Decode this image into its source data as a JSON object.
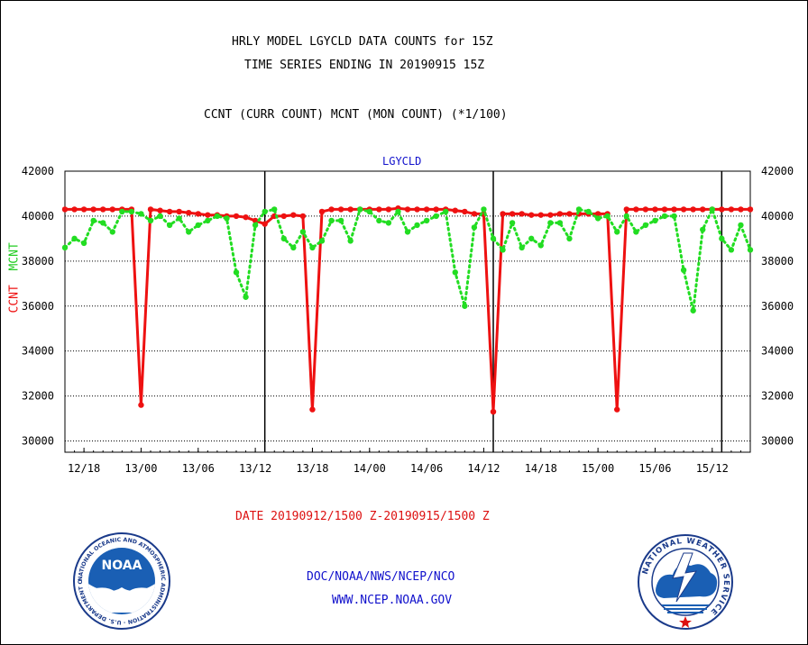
{
  "titles": {
    "line1": "HRLY MODEL LGYCLD DATA COUNTS for 15Z",
    "line2": "TIME SERIES ENDING IN 20190915 15Z",
    "line3": "CCNT (CURR COUNT) MCNT (MON COUNT) (*1/100)",
    "panel": "LGYCLD"
  },
  "footer": {
    "date_range": "DATE 20190912/1500 Z-20190915/1500 Z",
    "org": "DOC/NOAA/NWS/NCEP/NCO",
    "url": "WWW.NCEP.NOAA.GOV"
  },
  "logos": {
    "noaa_center": "NOAA",
    "noaa_ring": "NATIONAL OCEANIC AND ATMOSPHERIC ADMINISTRATION · U.S. DEPARTMENT OF COMMERCE ·",
    "nws_ring": "NATIONAL WEATHER SERVICE"
  },
  "colors": {
    "ccnt": "#ee1111",
    "mcnt": "#22dd22",
    "panel_title": "#1111cc",
    "footer_red": "#dd1111",
    "footer_blue": "#1111cc"
  },
  "chart_data": {
    "type": "line",
    "title": "HRLY MODEL LGYCLD DATA COUNTS for 15Z",
    "ylabel_left": "CCNT",
    "ylabel_right": "MCNT",
    "ylim": [
      29500,
      42000
    ],
    "yticks": [
      30000,
      32000,
      34000,
      36000,
      38000,
      40000,
      42000
    ],
    "xlim": [
      0,
      72
    ],
    "xticks": [
      {
        "x": 2,
        "label": "12/18"
      },
      {
        "x": 8,
        "label": "13/00"
      },
      {
        "x": 14,
        "label": "13/06"
      },
      {
        "x": 20,
        "label": "13/12"
      },
      {
        "x": 26,
        "label": "13/18"
      },
      {
        "x": 32,
        "label": "14/00"
      },
      {
        "x": 38,
        "label": "14/06"
      },
      {
        "x": 44,
        "label": "14/12"
      },
      {
        "x": 50,
        "label": "14/18"
      },
      {
        "x": 56,
        "label": "15/00"
      },
      {
        "x": 62,
        "label": "15/06"
      },
      {
        "x": 68,
        "label": "15/12"
      }
    ],
    "day_dividers_x": [
      21,
      45,
      69
    ],
    "grid": true,
    "series": [
      {
        "name": "CCNT",
        "color": "#ee1111",
        "style": "solid",
        "values": [
          40300,
          40300,
          40300,
          40300,
          40300,
          40300,
          40300,
          40300,
          31600,
          40300,
          40250,
          40200,
          40200,
          40150,
          40100,
          40050,
          40050,
          40000,
          40000,
          39950,
          39800,
          39650,
          40000,
          40000,
          40050,
          40000,
          31400,
          40200,
          40300,
          40300,
          40300,
          40300,
          40300,
          40300,
          40300,
          40350,
          40300,
          40300,
          40300,
          40300,
          40300,
          40250,
          40200,
          40100,
          40100,
          31300,
          40100,
          40100,
          40100,
          40050,
          40050,
          40050,
          40100,
          40100,
          40100,
          40100,
          40100,
          40100,
          31400,
          40300,
          40300,
          40300,
          40300,
          40300,
          40300,
          40300,
          40300,
          40300,
          40300,
          40300,
          40300,
          40300,
          40300
        ]
      },
      {
        "name": "MCNT",
        "color": "#22dd22",
        "style": "dotted",
        "values": [
          38600,
          39000,
          38800,
          39800,
          39700,
          39300,
          40200,
          40200,
          40100,
          39800,
          40000,
          39600,
          39900,
          39300,
          39600,
          39800,
          40000,
          39900,
          37500,
          36400,
          39600,
          40200,
          40300,
          39000,
          38600,
          39300,
          38600,
          38900,
          39800,
          39800,
          38900,
          40300,
          40200,
          39800,
          39700,
          40200,
          39300,
          39600,
          39800,
          40000,
          40200,
          37500,
          36000,
          39500,
          40300,
          39000,
          38500,
          39700,
          38600,
          39000,
          38700,
          39700,
          39700,
          39000,
          40300,
          40200,
          39900,
          40000,
          39300,
          40000,
          39300,
          39600,
          39800,
          40000,
          40000,
          37600,
          35800,
          39400,
          40300,
          39000,
          38500,
          39600,
          38500
        ]
      }
    ]
  }
}
